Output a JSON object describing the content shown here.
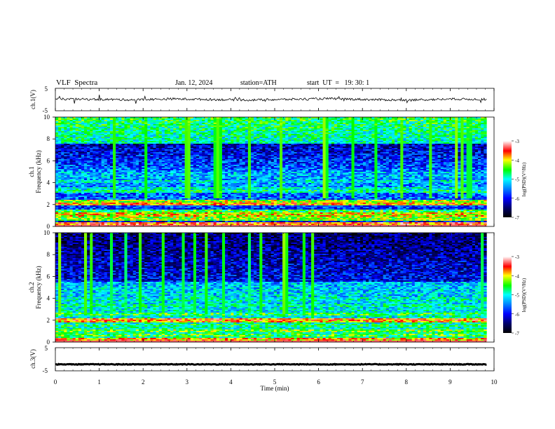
{
  "header": {
    "title": "VLF  Spectra",
    "date": "Jan. 12, 2024",
    "station": "station=ATH",
    "start": "start  UT  =   19: 30: 1"
  },
  "colors": {
    "spectrogram_scale": [
      "#000000",
      "#000066",
      "#0000ff",
      "#0088ff",
      "#00ffff",
      "#00ff00",
      "#ffff00",
      "#ff0000",
      "#ffffff"
    ],
    "trace": "#000000"
  },
  "chart_data": [
    {
      "type": "line",
      "panel": "ch1-waveform",
      "ylabel": "ch.1(V)",
      "ylim": [
        -5,
        5
      ],
      "yticks": [
        "5",
        "-5"
      ],
      "series": [
        {
          "values": [
            0.2,
            0.1,
            -0.1,
            0.3,
            0.0,
            -0.2,
            0.1,
            0.4,
            0.0,
            -0.3,
            0.2,
            0.1
          ]
        }
      ],
      "noise_amplitude_v": 1.0
    },
    {
      "type": "heatmap",
      "panel": "ch1-spectrogram",
      "ylabel": "ch.1\nFrequency  (kHz)",
      "ylim": [
        0,
        10
      ],
      "yticks": [
        "0",
        "2",
        "4",
        "6",
        "8",
        "10"
      ],
      "colorbar": {
        "label": "log(PSD)(V²/Hz)",
        "range": [
          -7,
          -3
        ],
        "ticks": [
          "-3",
          "-4",
          "-5",
          "-6",
          "-7"
        ]
      },
      "bands_khz": [
        {
          "f": 0.3,
          "level": -3.6
        },
        {
          "f": 0.7,
          "level": -4.3
        },
        {
          "f": 1.1,
          "level": -4.0
        },
        {
          "f": 1.4,
          "level": -4.6
        },
        {
          "f": 2.1,
          "level": -3.8
        },
        {
          "f": 2.3,
          "level": -4.2
        },
        {
          "f": 3.2,
          "level": -4.8
        },
        {
          "f": 3.5,
          "level": -5.0
        },
        {
          "f": 4.1,
          "level": -5.1
        },
        {
          "f": 4.5,
          "level": -5.3
        },
        {
          "f": 5.0,
          "level": -5.5
        }
      ]
    },
    {
      "type": "heatmap",
      "panel": "ch2-spectrogram",
      "ylabel": "ch.2\nFrequency  (kHz)",
      "ylim": [
        0,
        10
      ],
      "yticks": [
        "0",
        "2",
        "4",
        "6",
        "8",
        "10"
      ],
      "colorbar": {
        "label": "log(PSD)(V²/Hz)",
        "range": [
          -7,
          -3
        ],
        "ticks": [
          "-3",
          "-4",
          "-5",
          "-6",
          "-7"
        ]
      },
      "bands_khz": [
        {
          "f": 0.2,
          "level": -3.8
        },
        {
          "f": 0.6,
          "level": -4.5
        },
        {
          "f": 1.0,
          "level": -4.4
        },
        {
          "f": 1.5,
          "level": -4.7
        },
        {
          "f": 1.9,
          "level": -3.9
        },
        {
          "f": 2.1,
          "level": -3.7
        },
        {
          "f": 2.6,
          "level": -4.6
        },
        {
          "f": 3.3,
          "level": -4.9
        },
        {
          "f": 3.9,
          "level": -5.0
        },
        {
          "f": 4.6,
          "level": -5.2
        },
        {
          "f": 5.2,
          "level": -5.4
        }
      ]
    },
    {
      "type": "line",
      "panel": "ch3-waveform",
      "ylabel": "ch.3(V)",
      "ylim": [
        -5,
        5
      ],
      "yticks": [
        "5",
        "-5"
      ],
      "series": [
        {
          "values": [
            -2.2,
            -2.2,
            -2.2,
            -2.2,
            -2.2,
            -2.2,
            -2.2,
            -2.2,
            -2.2,
            -2.2,
            -2.2,
            -2.2
          ]
        }
      ],
      "noise_amplitude_v": 0.3
    }
  ],
  "xaxis": {
    "label": "Time  (min)",
    "range": [
      0,
      10
    ],
    "ticks": [
      "0",
      "1",
      "2",
      "3",
      "4",
      "5",
      "6",
      "7",
      "8",
      "9",
      "10"
    ],
    "data_end_min": 9.83
  }
}
